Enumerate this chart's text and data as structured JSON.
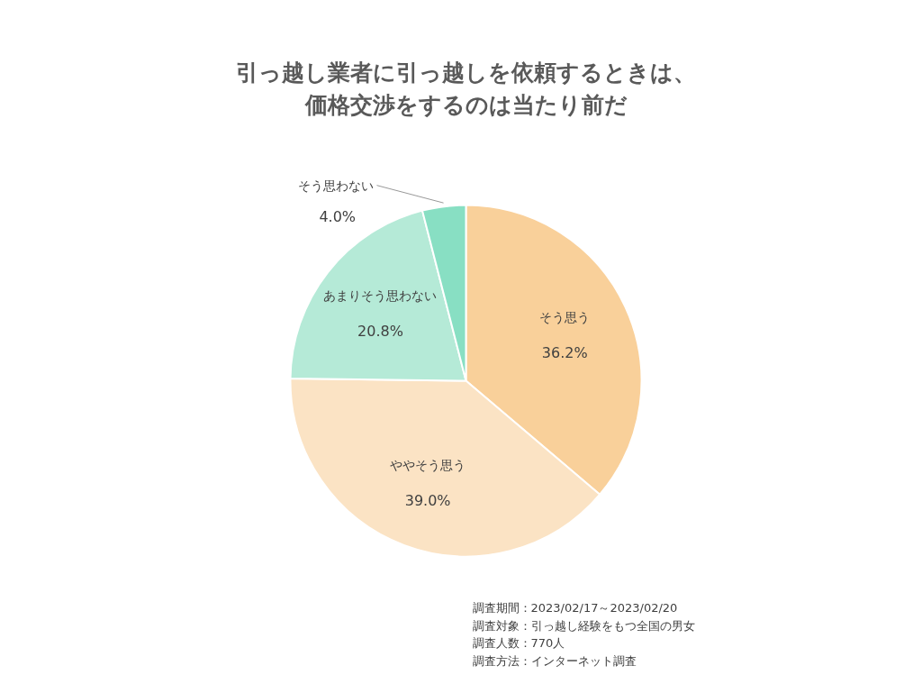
{
  "chart_data": {
    "type": "pie",
    "title": "引っ越し業者に引っ越しを依頼するときは、価格交渉をするのは当たり前だ",
    "categories": [
      "そう思う",
      "ややそう思う",
      "あまりそう思わない",
      "そう思わない"
    ],
    "values": [
      36.2,
      39.0,
      20.8,
      4.0
    ],
    "value_labels": [
      "36.2%",
      "39.0%",
      "20.8%",
      "4.0%"
    ],
    "colors": [
      "#f9d09a",
      "#fbe3c4",
      "#b5ead7",
      "#88dfc3"
    ],
    "legend": false,
    "annotations": [
      "調査期間：2023/02/17～2023/02/20",
      "調査対象：引っ越し経験をもつ全国の男女",
      "調査人数：770人",
      "調査方法：インターネット調査"
    ]
  }
}
